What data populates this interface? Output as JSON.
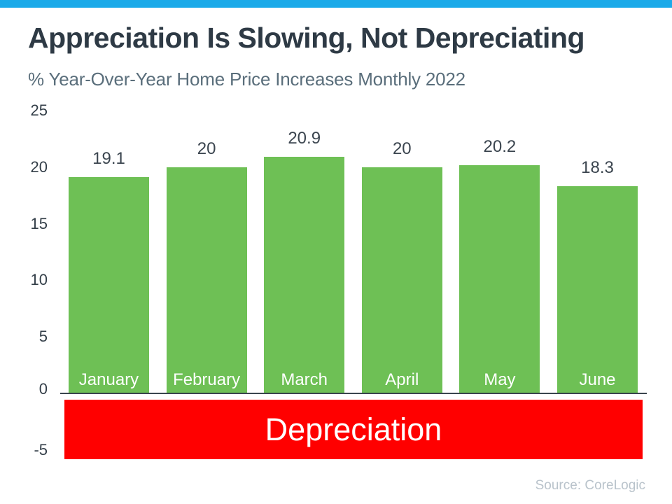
{
  "header": {
    "title": "Appreciation Is Slowing, Not Depreciating",
    "subtitle": "% Year-Over-Year Home Price Increases Monthly 2022"
  },
  "chart_data": {
    "type": "bar",
    "title": "Appreciation Is Slowing, Not Depreciating",
    "subtitle": "% Year-Over-Year Home Price Increases Monthly 2022",
    "categories": [
      "January",
      "February",
      "March",
      "April",
      "May",
      "June"
    ],
    "values": [
      19.1,
      20,
      20.9,
      20,
      20.2,
      18.3
    ],
    "value_labels": [
      "19.1",
      "20",
      "20.9",
      "20",
      "20.2",
      "18.3"
    ],
    "yticks": [
      25,
      20,
      15,
      10,
      5,
      0,
      -5
    ],
    "ylim": [
      -5,
      25
    ],
    "grid": false,
    "legend": "none",
    "bar_color": "#6EC055",
    "annotation": {
      "label": "Depreciation",
      "region_from": 0,
      "region_to": -5,
      "fill_color": "#FF0000",
      "text_color": "#FFFFFF"
    }
  },
  "colors": {
    "top_accent": "#1BAAE9",
    "title_text": "#2E3A45",
    "subtitle_text": "#5A6E7B",
    "tick_text": "#333E48",
    "value_text": "#3B454F",
    "axis_line": "#3A444D",
    "bar_green": "#6EC055",
    "band_red": "#FF0000",
    "category_text": "#FFFFFF",
    "source_text": "#B9C3CB"
  },
  "footer": {
    "source": "Source: CoreLogic"
  }
}
